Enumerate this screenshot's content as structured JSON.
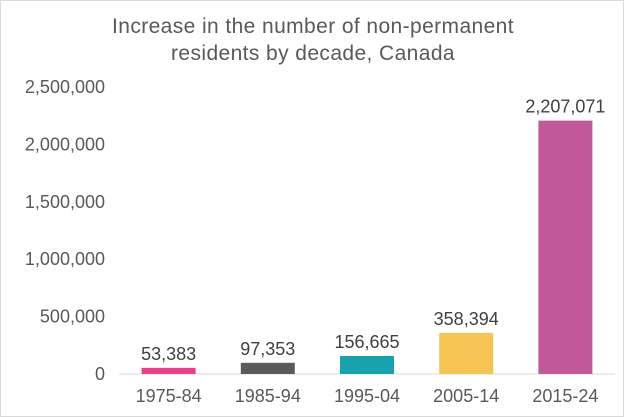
{
  "chart_data": {
    "type": "bar",
    "title_lines": [
      "Increase in the number of non-permanent",
      "residents by decade, Canada"
    ],
    "categories": [
      "1975-84",
      "1985-94",
      "1995-04",
      "2005-14",
      "2015-24"
    ],
    "values": [
      53383,
      97353,
      156665,
      358394,
      2207071
    ],
    "data_labels": [
      "53,383",
      "97,353",
      "156,665",
      "358,394",
      "2,207,071"
    ],
    "bar_colors": [
      "#e8408a",
      "#5a5a5a",
      "#17a2ad",
      "#f6c452",
      "#c0589a"
    ],
    "ylim": [
      0,
      2500000
    ],
    "yticks": [
      0,
      500000,
      1000000,
      1500000,
      2000000,
      2500000
    ],
    "ytick_labels": [
      "0",
      "500,000",
      "1,000,000",
      "1,500,000",
      "2,000,000",
      "2,500,000"
    ],
    "xlabel": "",
    "ylabel": "",
    "grid": false,
    "legend": false
  }
}
